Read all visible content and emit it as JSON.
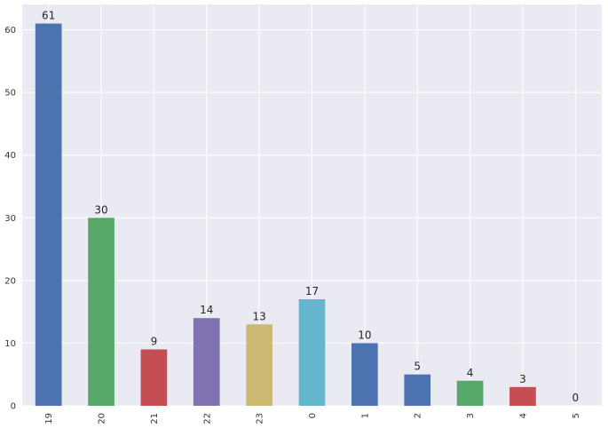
{
  "chart_data": {
    "type": "bar",
    "categories": [
      "19",
      "20",
      "21",
      "22",
      "23",
      "0",
      "1",
      "2",
      "3",
      "4",
      "5"
    ],
    "values": [
      61,
      30,
      9,
      14,
      13,
      17,
      10,
      5,
      4,
      3,
      0
    ],
    "data_labels": [
      "61",
      "30",
      "9",
      "14",
      "13",
      "17",
      "10",
      "5",
      "4",
      "3",
      "0"
    ],
    "bar_colors": [
      "#4c72b0",
      "#55a868",
      "#c44e52",
      "#8172b2",
      "#ccb974",
      "#64b5cd",
      "#4c72b0",
      "#4c72b0",
      "#55a868",
      "#c44e52",
      "#8172b2"
    ],
    "y_ticks": [
      0,
      10,
      20,
      30,
      40,
      50,
      60
    ],
    "y_tick_labels": [
      "0",
      "10",
      "20",
      "30",
      "40",
      "50",
      "60"
    ],
    "ylim": [
      0,
      64.05
    ],
    "title": "",
    "xlabel": "",
    "ylabel": "",
    "grid": true,
    "x_tick_rotation": "vertical",
    "background_color": "#eaeaf2",
    "grid_color": "#ffffff"
  }
}
